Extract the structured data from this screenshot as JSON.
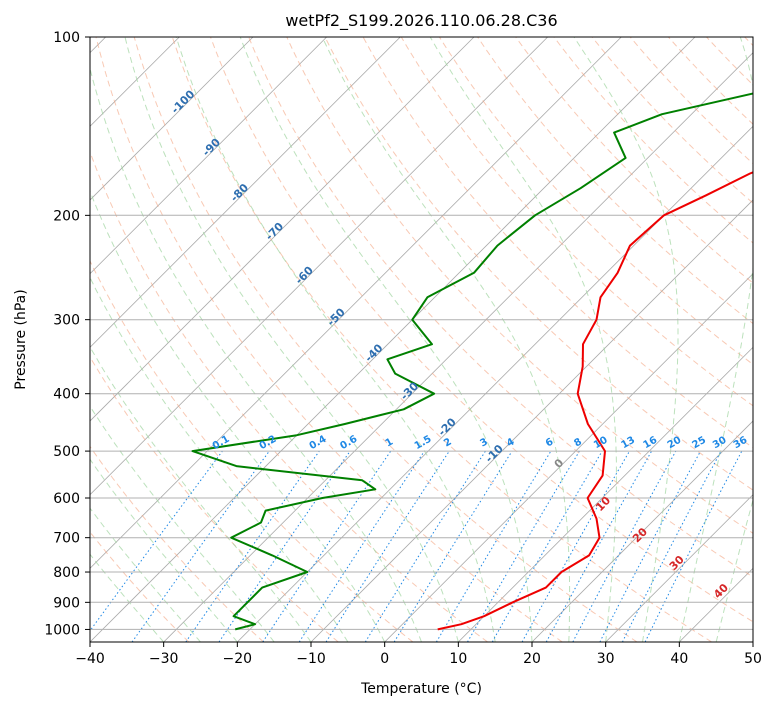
{
  "chart_data": {
    "type": "line",
    "subtype": "skew-t log-p",
    "title": "wetPf2_S199.2026.110.06.28.C36",
    "xlabel": "Temperature (°C)",
    "ylabel": "Pressure (hPa)",
    "xlim": [
      -40,
      50
    ],
    "ylim": [
      1050,
      100
    ],
    "y_scale": "log",
    "x_ticks": [
      -40,
      -30,
      -20,
      -10,
      0,
      10,
      20,
      30,
      40,
      50
    ],
    "y_ticks": [
      100,
      200,
      300,
      400,
      500,
      600,
      700,
      800,
      900,
      1000
    ],
    "grid": true,
    "colors": {
      "temperature": "#ee0000",
      "dewpoint": "#008000",
      "isotherm": "#aaaaaa",
      "dry_adiabat": "#f4a582",
      "moist_adiabat": "#9fd49f",
      "mixing_ratio": "#1e88e5",
      "frame": "#000000"
    },
    "series": [
      {
        "name": "",
        "color": "#ee0000",
        "points": [
          [
            100,
            12.5
          ],
          [
            120,
            11.5
          ],
          [
            135,
            6.5
          ],
          [
            145,
            -2
          ],
          [
            155,
            -9
          ],
          [
            170,
            -14
          ],
          [
            185,
            -17
          ],
          [
            200,
            -20
          ],
          [
            225,
            -20.5
          ],
          [
            250,
            -18.5
          ],
          [
            275,
            -17.5
          ],
          [
            300,
            -15
          ],
          [
            330,
            -13.5
          ],
          [
            360,
            -10.5
          ],
          [
            400,
            -7.5
          ],
          [
            450,
            -2
          ],
          [
            500,
            4
          ],
          [
            550,
            7
          ],
          [
            600,
            8
          ],
          [
            650,
            12
          ],
          [
            700,
            15
          ],
          [
            750,
            16
          ],
          [
            800,
            14.5
          ],
          [
            850,
            14.5
          ],
          [
            900,
            12
          ],
          [
            950,
            10
          ],
          [
            980,
            8
          ],
          [
            1000,
            5.5
          ]
        ]
      },
      {
        "name": "",
        "color": "#008000",
        "points": [
          [
            100,
            -12
          ],
          [
            120,
            -20
          ],
          [
            135,
            -34
          ],
          [
            145,
            -38
          ],
          [
            160,
            -33
          ],
          [
            180,
            -35
          ],
          [
            200,
            -37.5
          ],
          [
            225,
            -38.5
          ],
          [
            250,
            -38
          ],
          [
            275,
            -41
          ],
          [
            300,
            -40
          ],
          [
            330,
            -34
          ],
          [
            350,
            -38
          ],
          [
            370,
            -35
          ],
          [
            400,
            -27
          ],
          [
            425,
            -29
          ],
          [
            450,
            -35
          ],
          [
            470,
            -40
          ],
          [
            500,
            -52
          ],
          [
            530,
            -44
          ],
          [
            560,
            -25
          ],
          [
            580,
            -22
          ],
          [
            600,
            -28
          ],
          [
            630,
            -34
          ],
          [
            660,
            -33
          ],
          [
            700,
            -35
          ],
          [
            750,
            -27
          ],
          [
            800,
            -20
          ],
          [
            850,
            -24
          ],
          [
            900,
            -24
          ],
          [
            950,
            -24
          ],
          [
            980,
            -20
          ],
          [
            1000,
            -22
          ]
        ]
      }
    ],
    "isotherm_labels": [
      -100,
      -90,
      -80,
      -70,
      -60,
      -50,
      -40,
      -30,
      -20,
      -10
    ],
    "mixing_ratio_labels": [
      "0.1",
      "0.2",
      "0.4",
      "0.6",
      "1",
      "1.5",
      "2",
      "3",
      "4",
      "6",
      "8",
      "10",
      "13",
      "16",
      "20",
      "25",
      "30",
      "36"
    ],
    "mixing_ratio_values": [
      0.1,
      0.2,
      0.4,
      0.6,
      1,
      1.5,
      2,
      3,
      4,
      6,
      8,
      10,
      13,
      16,
      20,
      25,
      30,
      36
    ],
    "moist_adiabat_labels": [
      "0",
      "10",
      "20",
      "30",
      "40"
    ]
  }
}
